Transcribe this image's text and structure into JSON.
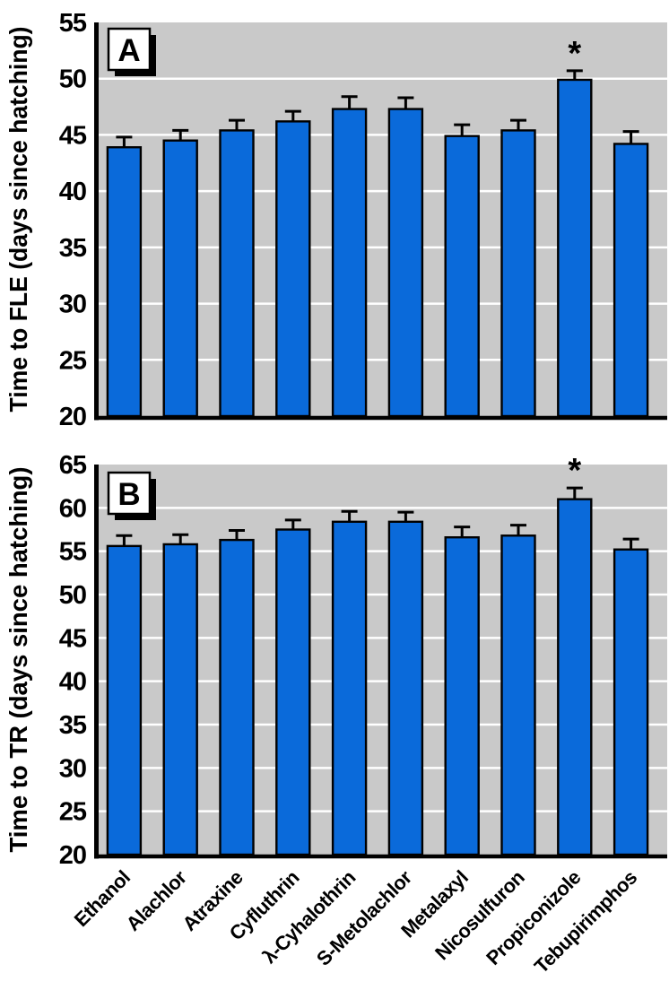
{
  "style": {
    "bar_color": "#0a6ada",
    "bar_border": "#000000",
    "plot_bg": "#c9c9c9",
    "gridline_color": "#ffffff",
    "axis_color": "#000000",
    "text_color": "#000000",
    "panel_box_fill": "#ffffff",
    "panel_box_shadow": "#000000"
  },
  "chart_data": [
    {
      "type": "bar",
      "panel_label": "A",
      "ylabel": "Time to FLE (days since hatching)",
      "ylim": [
        20,
        55
      ],
      "ytick_step": 5,
      "grid": true,
      "error_bars": "upper",
      "categories": [
        "Ethanol",
        "Alachlor",
        "Atraxine",
        "Cyfluthrin",
        "λ-Cyhalothrin",
        "S-Metolachlor",
        "Metalaxyl",
        "Nicosulfuron",
        "Propiconizole",
        "Tebupirimphos"
      ],
      "values": [
        43.9,
        44.5,
        45.4,
        46.2,
        47.3,
        47.3,
        44.9,
        45.4,
        49.9,
        44.2
      ],
      "errors_upper": [
        0.9,
        0.9,
        0.9,
        0.9,
        1.1,
        1.0,
        1.0,
        0.9,
        0.8,
        1.1
      ],
      "significance_marker": "*",
      "significant_categories": [
        "Propiconizole"
      ],
      "show_x_labels": false
    },
    {
      "type": "bar",
      "panel_label": "B",
      "ylabel": "Time to TR (days since hatching)",
      "ylim": [
        20,
        65
      ],
      "ytick_step": 5,
      "grid": true,
      "error_bars": "upper",
      "categories": [
        "Ethanol",
        "Alachlor",
        "Atraxine",
        "Cyfluthrin",
        "λ-Cyhalothrin",
        "S-Metolachlor",
        "Metalaxyl",
        "Nicosulfuron",
        "Propiconizole",
        "Tebupirimphos"
      ],
      "values": [
        55.6,
        55.8,
        56.3,
        57.5,
        58.4,
        58.4,
        56.6,
        56.8,
        61.0,
        55.2
      ],
      "errors_upper": [
        1.2,
        1.1,
        1.1,
        1.1,
        1.2,
        1.1,
        1.2,
        1.2,
        1.3,
        1.2
      ],
      "significance_marker": "*",
      "significant_categories": [
        "Propiconizole"
      ],
      "show_x_labels": true
    }
  ]
}
